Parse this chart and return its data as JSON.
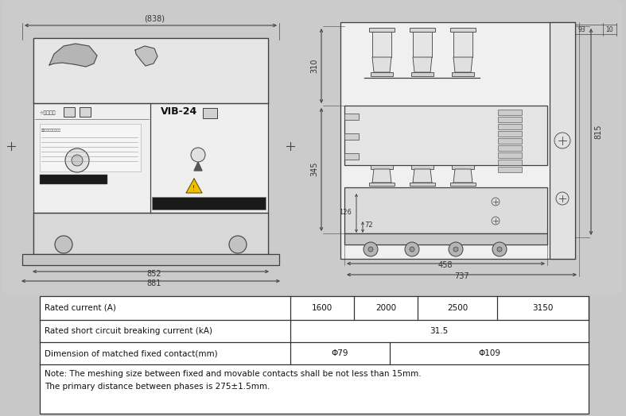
{
  "bg_color": "#c8c8c8",
  "line_color": "#404040",
  "dim_838": "(838)",
  "dim_852": "852",
  "dim_881": "881",
  "dim_310": "310",
  "dim_345": "345",
  "dim_72": "72",
  "dim_126": "126",
  "dim_458": "458",
  "dim_737": "737",
  "dim_815": "815",
  "dim_93": "93",
  "dim_10": "10",
  "label_vib24": "VIB-24",
  "row1_label": "Rated current (A)",
  "row1_cells": [
    "1600",
    "2000",
    "2500",
    "3150"
  ],
  "row2_label": "Rated short circuit breaking current (kA)",
  "row2_val": "31.5",
  "row3_label": "Dimension of matched fixed contact(mm)",
  "row3_val1": "Φ79",
  "row3_val2": "Φ109",
  "note_line1": "Note: The meshing size between fixed and movable contacts shall be not less than 15mm.",
  "note_line2": "The primary distance between phases is 275±1.5mm."
}
